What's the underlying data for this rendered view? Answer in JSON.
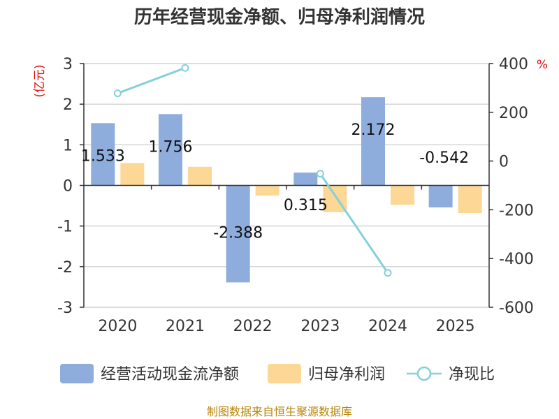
{
  "chart_data": {
    "type": "bar+line",
    "title": "历年经营现金净额、归母净利润情况",
    "categories": [
      "2020",
      "2021",
      "2022",
      "2023",
      "2024",
      "2025"
    ],
    "left_axis": {
      "unit": "(亿元)",
      "ylim": [
        -3,
        3
      ],
      "ticks": [
        "3",
        "2",
        "1",
        "0",
        "-1",
        "-2",
        "-3"
      ]
    },
    "right_axis": {
      "unit": "%",
      "ylim": [
        -600,
        400
      ],
      "ticks": [
        "400",
        "200",
        "0",
        "-200",
        "-400",
        "-600"
      ]
    },
    "series": [
      {
        "name": "经营活动现金流净额",
        "type": "bar",
        "axis": "left",
        "color": "#8eaddc",
        "values": [
          1.533,
          1.756,
          -2.388,
          0.315,
          2.172,
          -0.542
        ],
        "labels": [
          "1.533",
          "1.756",
          "-2.388",
          "0.315",
          "2.172",
          "-0.542"
        ]
      },
      {
        "name": "归母净利润",
        "type": "bar",
        "axis": "left",
        "color": "#fdd795",
        "values": [
          0.55,
          0.46,
          -0.25,
          -0.66,
          -0.48,
          -0.68
        ]
      },
      {
        "name": "净现比",
        "type": "line",
        "axis": "right",
        "color": "#86d0d8",
        "values": [
          278,
          382,
          null,
          -52,
          -459,
          null
        ]
      }
    ],
    "grid": true,
    "legend": "bottom"
  },
  "source": "制图数据来自恒生聚源数据库"
}
